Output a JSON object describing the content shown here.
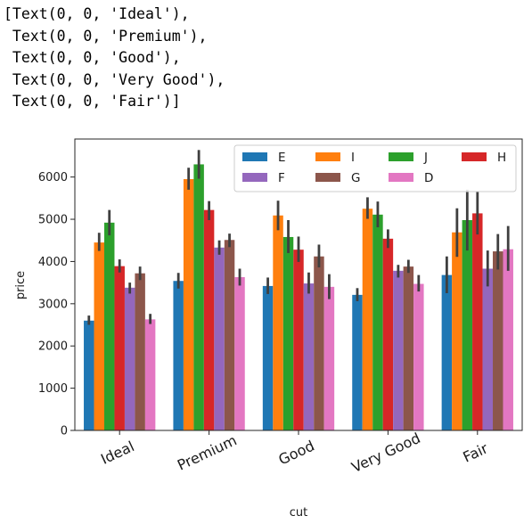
{
  "output_lines": [
    "[Text(0, 0, 'Ideal'),",
    " Text(0, 0, 'Premium'),",
    " Text(0, 0, 'Good'),",
    " Text(0, 0, 'Very Good'),",
    " Text(0, 0, 'Fair')]"
  ],
  "chart_data": {
    "type": "bar",
    "title": "",
    "xlabel": "cut",
    "ylabel": "price",
    "ylim": [
      0,
      6900
    ],
    "yticks": [
      0,
      1000,
      2000,
      3000,
      4000,
      5000,
      6000
    ],
    "categories": [
      "Ideal",
      "Premium",
      "Good",
      "Very Good",
      "Fair"
    ],
    "category_label_rotation_deg": -25,
    "grid": false,
    "legend": {
      "placement": "top-right",
      "columns": 4
    },
    "series": [
      {
        "name": "E",
        "color": "#1f77b4",
        "values": [
          2600,
          3540,
          3420,
          3210,
          3680
        ],
        "ci": [
          [
            2500,
            2720
          ],
          [
            3360,
            3730
          ],
          [
            3230,
            3620
          ],
          [
            3060,
            3370
          ],
          [
            3250,
            4120
          ]
        ]
      },
      {
        "name": "I",
        "color": "#ff7f0e",
        "values": [
          4450,
          5950,
          5090,
          5250,
          4690
        ],
        "ci": [
          [
            4250,
            4680
          ],
          [
            5700,
            6220
          ],
          [
            4740,
            5440
          ],
          [
            5010,
            5520
          ],
          [
            4110,
            5260
          ]
        ]
      },
      {
        "name": "J",
        "color": "#2ca02c",
        "values": [
          4920,
          6300,
          4580,
          5110,
          4980
        ],
        "ci": [
          [
            4620,
            5220
          ],
          [
            5960,
            6640
          ],
          [
            4200,
            4980
          ],
          [
            4810,
            5420
          ],
          [
            4260,
            5700
          ]
        ]
      },
      {
        "name": "H",
        "color": "#d62728",
        "values": [
          3890,
          5220,
          4280,
          4540,
          5140
        ],
        "ci": [
          [
            3740,
            4050
          ],
          [
            4980,
            5430
          ],
          [
            3990,
            4590
          ],
          [
            4320,
            4760
          ],
          [
            4640,
            5650
          ]
        ]
      },
      {
        "name": "F",
        "color": "#9467bd",
        "values": [
          3380,
          4330,
          3480,
          3780,
          3830
        ],
        "ci": [
          [
            3240,
            3500
          ],
          [
            4160,
            4500
          ],
          [
            3240,
            3740
          ],
          [
            3620,
            3920
          ],
          [
            3410,
            4260
          ]
        ]
      },
      {
        "name": "G",
        "color": "#8c564b",
        "values": [
          3720,
          4510,
          4120,
          3880,
          4240
        ],
        "ci": [
          [
            3560,
            3880
          ],
          [
            4340,
            4660
          ],
          [
            3860,
            4400
          ],
          [
            3730,
            4040
          ],
          [
            3810,
            4650
          ]
        ]
      },
      {
        "name": "D",
        "color": "#e377c2",
        "values": [
          2630,
          3630,
          3400,
          3470,
          4290
        ],
        "ci": [
          [
            2520,
            2760
          ],
          [
            3430,
            3830
          ],
          [
            3110,
            3700
          ],
          [
            3290,
            3680
          ],
          [
            3780,
            4840
          ]
        ]
      }
    ]
  }
}
